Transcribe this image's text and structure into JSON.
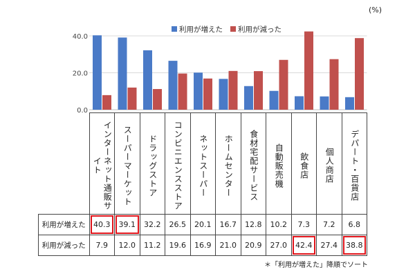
{
  "unit_label": "(%)",
  "footnote": "＊「利用が増えた」降順でソート",
  "colors": {
    "increased": "#4a7ac7",
    "decreased": "#c0504d",
    "highlight": "#e0141a"
  },
  "chart_data": {
    "type": "bar",
    "categories": [
      "インターネット通販サイト",
      "スーパーマーケット",
      "ドラッグストア",
      "コンビニエンスストア",
      "ネットスーパー",
      "ホームセンター",
      "食材宅配サービス",
      "自動販売機",
      "飲食店",
      "個人商店",
      "デパート・百貨店"
    ],
    "category_display": [
      "インターネット通販サイト",
      "スーパーマーケット",
      "ドラッグストア",
      "コンビニエンスストア",
      "ネットスーパー",
      "ホームセンター",
      "食材宅配サービス",
      "自動販売機",
      "飲食店",
      "個人商店",
      "デパート・百貨店"
    ],
    "series": [
      {
        "name": "利用が増えた",
        "values": [
          40.3,
          39.1,
          32.2,
          26.5,
          20.1,
          16.7,
          12.8,
          10.2,
          7.3,
          7.2,
          6.8
        ]
      },
      {
        "name": "利用が減った",
        "values": [
          7.9,
          12.0,
          11.2,
          19.6,
          16.9,
          21.0,
          20.9,
          27.0,
          42.4,
          27.4,
          38.8
        ]
      }
    ],
    "ylim": [
      0,
      45
    ],
    "yticks": [
      0,
      20,
      40
    ],
    "ytick_labels": [
      "0.0",
      "20.0",
      "40.0"
    ],
    "grid": true,
    "legend_position": "top-right",
    "highlighted": {
      "increased": [
        0,
        1
      ],
      "decreased": [
        8,
        10
      ]
    }
  }
}
